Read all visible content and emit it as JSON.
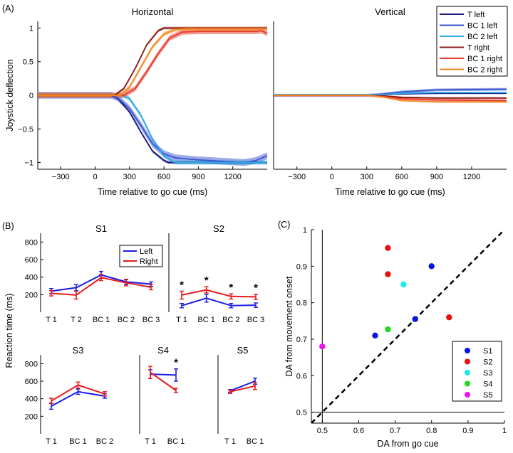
{
  "panel_labels": {
    "a": "(A)",
    "b": "(B)",
    "c": "(C)"
  },
  "asterisk": "*",
  "chart_data": [
    {
      "id": "A_horizontal",
      "type": "line",
      "title": "Horizontal",
      "xlabel": "Time relative to go cue (ms)",
      "ylabel": "Joystick deflection",
      "xlim": [
        -500,
        1500
      ],
      "ylim": [
        -1.1,
        1.1
      ],
      "xticks": [
        -300,
        0,
        300,
        600,
        900,
        1200
      ],
      "yticks": [
        -1,
        -0.5,
        0,
        0.5,
        1
      ],
      "series": [
        {
          "name": "T left",
          "color": "#1a1a80",
          "band": 0.02,
          "points": [
            [
              -500,
              0
            ],
            [
              140,
              0
            ],
            [
              200,
              -0.05
            ],
            [
              300,
              -0.25
            ],
            [
              400,
              -0.55
            ],
            [
              500,
              -0.83
            ],
            [
              600,
              -0.97
            ],
            [
              640,
              -1
            ],
            [
              1500,
              -1
            ]
          ]
        },
        {
          "name": "BC 1 left",
          "color": "#3a55d0",
          "band": 0.05,
          "points": [
            [
              -500,
              0
            ],
            [
              140,
              0
            ],
            [
              200,
              -0.04
            ],
            [
              300,
              -0.2
            ],
            [
              400,
              -0.45
            ],
            [
              500,
              -0.72
            ],
            [
              600,
              -0.87
            ],
            [
              700,
              -0.93
            ],
            [
              900,
              -0.96
            ],
            [
              1100,
              -0.98
            ],
            [
              1300,
              -1
            ],
            [
              1400,
              -0.97
            ],
            [
              1500,
              -0.9
            ]
          ]
        },
        {
          "name": "BC 2 left",
          "color": "#2fa8e0",
          "band": 0.03,
          "points": [
            [
              -500,
              0
            ],
            [
              240,
              0
            ],
            [
              300,
              -0.05
            ],
            [
              400,
              -0.3
            ],
            [
              500,
              -0.65
            ],
            [
              600,
              -0.9
            ],
            [
              680,
              -0.99
            ],
            [
              720,
              -1
            ],
            [
              1500,
              -1
            ]
          ]
        },
        {
          "name": "T right",
          "color": "#8a1a1a",
          "band": 0.02,
          "points": [
            [
              -500,
              0
            ],
            [
              170,
              0
            ],
            [
              250,
              0.1
            ],
            [
              350,
              0.4
            ],
            [
              450,
              0.75
            ],
            [
              550,
              0.96
            ],
            [
              600,
              1
            ],
            [
              1500,
              1
            ]
          ]
        },
        {
          "name": "BC 1 right",
          "color": "#e83a2a",
          "band": 0.04,
          "points": [
            [
              -500,
              0
            ],
            [
              250,
              0
            ],
            [
              350,
              0.1
            ],
            [
              450,
              0.35
            ],
            [
              550,
              0.62
            ],
            [
              650,
              0.85
            ],
            [
              760,
              0.94
            ],
            [
              900,
              0.95
            ],
            [
              1400,
              0.95
            ],
            [
              1450,
              0.96
            ],
            [
              1500,
              0.92
            ]
          ]
        },
        {
          "name": "BC 2 right",
          "color": "#f38a20",
          "band": 0.03,
          "points": [
            [
              -500,
              0
            ],
            [
              220,
              0
            ],
            [
              300,
              0.12
            ],
            [
              400,
              0.42
            ],
            [
              500,
              0.72
            ],
            [
              600,
              0.91
            ],
            [
              700,
              0.98
            ],
            [
              800,
              0.99
            ],
            [
              1500,
              0.99
            ]
          ]
        }
      ]
    },
    {
      "id": "A_vertical",
      "type": "line",
      "title": "Vertical",
      "xlabel": "Time relative to go cue (ms)",
      "xlim": [
        -500,
        1500
      ],
      "ylim": [
        -1.1,
        1.1
      ],
      "xticks": [
        -300,
        0,
        300,
        600,
        900,
        1200
      ],
      "series": [
        {
          "name": "T left",
          "color": "#1a1a80",
          "band": 0.01,
          "points": [
            [
              -500,
              0
            ],
            [
              300,
              0
            ],
            [
              450,
              0.01
            ],
            [
              600,
              0.02
            ],
            [
              900,
              0.03
            ],
            [
              1500,
              0.03
            ]
          ]
        },
        {
          "name": "BC 1 left",
          "color": "#3a55d0",
          "band": 0.02,
          "points": [
            [
              -500,
              0
            ],
            [
              300,
              0
            ],
            [
              450,
              0.02
            ],
            [
              600,
              0.05
            ],
            [
              900,
              0.08
            ],
            [
              1500,
              0.09
            ]
          ]
        },
        {
          "name": "BC 2 left",
          "color": "#2fa8e0",
          "band": 0.01,
          "points": [
            [
              -500,
              0.01
            ],
            [
              300,
              0.01
            ],
            [
              450,
              0.01
            ],
            [
              600,
              0.03
            ],
            [
              900,
              0.04
            ],
            [
              1500,
              0.04
            ]
          ]
        },
        {
          "name": "T right",
          "color": "#8a1a1a",
          "band": 0.01,
          "points": [
            [
              -500,
              0
            ],
            [
              300,
              0
            ],
            [
              450,
              -0.01
            ],
            [
              600,
              -0.03
            ],
            [
              900,
              -0.04
            ],
            [
              1500,
              -0.04
            ]
          ]
        },
        {
          "name": "BC 1 right",
          "color": "#e83a2a",
          "band": 0.02,
          "points": [
            [
              -500,
              0
            ],
            [
              300,
              0
            ],
            [
              450,
              -0.02
            ],
            [
              600,
              -0.05
            ],
            [
              900,
              -0.07
            ],
            [
              1500,
              -0.08
            ]
          ]
        },
        {
          "name": "BC 2 right",
          "color": "#f38a20",
          "band": 0.01,
          "points": [
            [
              -500,
              0
            ],
            [
              300,
              0
            ],
            [
              450,
              -0.03
            ],
            [
              600,
              -0.08
            ],
            [
              900,
              -0.1
            ],
            [
              1500,
              -0.1
            ]
          ]
        }
      ]
    },
    {
      "id": "B_S1",
      "type": "line",
      "title": "S1",
      "ylabel": "Reaction time (ms)",
      "categories": [
        "T 1",
        "T 2",
        "BC 1",
        "BC 2",
        "BC 3"
      ],
      "ylim": [
        0,
        900
      ],
      "yticks": [
        200,
        400,
        600,
        800
      ],
      "series": [
        {
          "name": "Left",
          "color": "#1a1ae8",
          "values": [
            240,
            280,
            425,
            345,
            320
          ],
          "errors": [
            30,
            35,
            40,
            30,
            25
          ]
        },
        {
          "name": "Right",
          "color": "#e81a1a",
          "values": [
            215,
            195,
            395,
            335,
            285
          ],
          "errors": [
            30,
            45,
            35,
            35,
            30
          ]
        }
      ]
    },
    {
      "id": "B_S2",
      "type": "line",
      "title": "S2",
      "categories": [
        "T 1",
        "BC 1",
        "BC 2",
        "BC 3"
      ],
      "ylim": [
        0,
        900
      ],
      "significant": [
        true,
        true,
        true,
        true
      ],
      "series": [
        {
          "name": "Left",
          "color": "#1a1ae8",
          "values": [
            75,
            160,
            75,
            80
          ],
          "errors": [
            25,
            45,
            25,
            25
          ]
        },
        {
          "name": "Right",
          "color": "#e81a1a",
          "values": [
            195,
            255,
            180,
            175
          ],
          "errors": [
            45,
            35,
            30,
            30
          ]
        }
      ]
    },
    {
      "id": "B_S3",
      "type": "line",
      "title": "S3",
      "categories": [
        "T 1",
        "BC 1",
        "BC 2"
      ],
      "ylim": [
        0,
        900
      ],
      "yticks": [
        200,
        400,
        600,
        800
      ],
      "series": [
        {
          "name": "Left",
          "color": "#1a1ae8",
          "values": [
            315,
            480,
            430
          ],
          "errors": [
            35,
            30,
            25
          ]
        },
        {
          "name": "Right",
          "color": "#e81a1a",
          "values": [
            375,
            555,
            455
          ],
          "errors": [
            30,
            35,
            25
          ]
        }
      ]
    },
    {
      "id": "B_S4",
      "type": "line",
      "title": "S4",
      "categories": [
        "T 1",
        "BC 1"
      ],
      "ylim": [
        0,
        900
      ],
      "significant": [
        false,
        true
      ],
      "series": [
        {
          "name": "Left",
          "color": "#1a1ae8",
          "values": [
            680,
            670
          ],
          "errors": [
            50,
            70
          ]
        },
        {
          "name": "Right",
          "color": "#e81a1a",
          "values": [
            700,
            495
          ],
          "errors": [
            70,
            25
          ]
        }
      ]
    },
    {
      "id": "B_S5",
      "type": "line",
      "title": "S5",
      "categories": [
        "T 1",
        "BC 1"
      ],
      "ylim": [
        0,
        900
      ],
      "series": [
        {
          "name": "Left",
          "color": "#1a1ae8",
          "values": [
            490,
            600
          ],
          "errors": [
            15,
            35
          ]
        },
        {
          "name": "Right",
          "color": "#e81a1a",
          "values": [
            480,
            545
          ],
          "errors": [
            20,
            40
          ]
        }
      ]
    },
    {
      "id": "C",
      "type": "scatter",
      "xlabel": "DA from go cue",
      "ylabel": "DA from movement onset",
      "xlim": [
        0.47,
        1.0
      ],
      "ylim": [
        0.47,
        1.0
      ],
      "xticks": [
        0.5,
        0.6,
        0.7,
        0.8,
        0.9,
        1
      ],
      "yticks": [
        0.5,
        0.6,
        0.7,
        0.8,
        0.9,
        1
      ],
      "reference_lines": {
        "vertical_x": 0.5,
        "horizontal_y": 0.5,
        "diagonal": "y = x (dashed)"
      },
      "series": [
        {
          "name": "S1",
          "color": "#0a14e0",
          "points": [
            [
              0.645,
              0.71
            ],
            [
              0.755,
              0.755
            ],
            [
              0.8,
              0.9
            ]
          ]
        },
        {
          "name": "S2",
          "color": "#e80e0e",
          "points": [
            [
              0.68,
              0.95
            ],
            [
              0.68,
              0.878
            ],
            [
              0.848,
              0.76
            ]
          ]
        },
        {
          "name": "S3",
          "color": "#18eaea",
          "points": [
            [
              0.723,
              0.85
            ]
          ]
        },
        {
          "name": "S4",
          "color": "#22d822",
          "points": [
            [
              0.68,
              0.727
            ]
          ]
        },
        {
          "name": "S5",
          "color": "#ee12ee",
          "points": [
            [
              0.5,
              0.68
            ]
          ]
        }
      ]
    }
  ]
}
